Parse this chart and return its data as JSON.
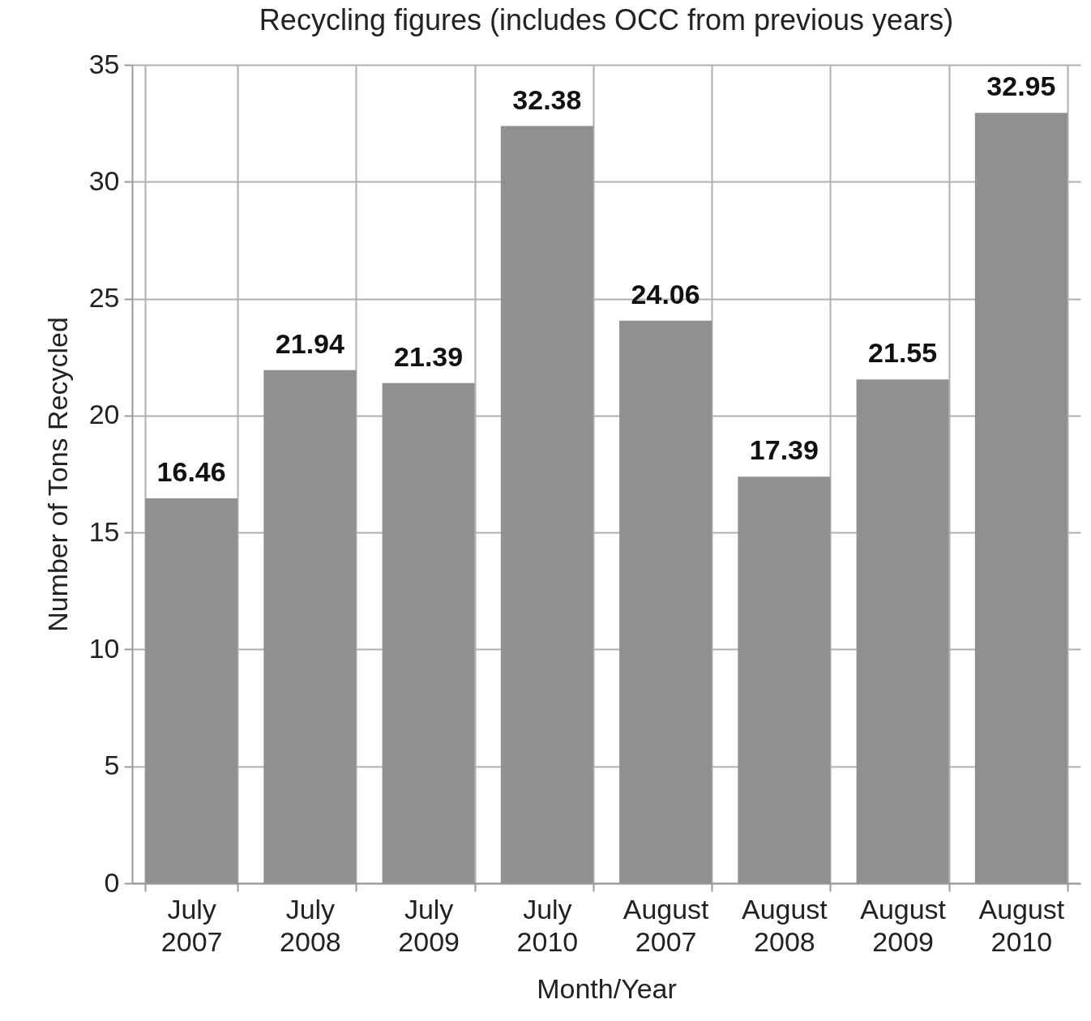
{
  "chart_data": {
    "type": "bar",
    "title": "Recycling figures (includes OCC from previous years)",
    "xlabel": "Month/Year",
    "ylabel": "Number of Tons Recycled",
    "categories": [
      "July 2007",
      "July 2008",
      "July 2009",
      "July 2010",
      "August 2007",
      "August 2008",
      "August 2009",
      "August 2010"
    ],
    "values": [
      16.46,
      21.94,
      21.39,
      32.38,
      24.06,
      17.39,
      21.55,
      32.95
    ],
    "color": "#909090",
    "ylim": [
      0,
      35
    ],
    "yticks": [
      0,
      5,
      10,
      15,
      20,
      25,
      30,
      35
    ],
    "grid": true,
    "data_labels": true
  }
}
